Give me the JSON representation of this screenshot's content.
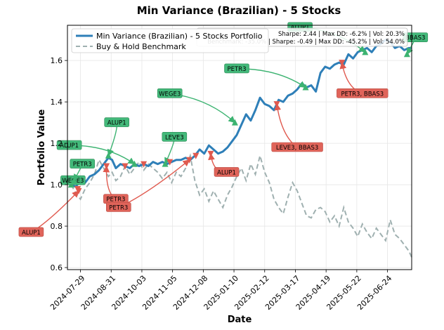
{
  "chart_data": {
    "type": "line",
    "title": "Min Variance (Brazilian) - 5 Stocks",
    "xlabel": "Date",
    "ylabel": "Portfolio Value",
    "xlim": [
      "2024-07-15",
      "2025-07-20"
    ],
    "ylim": [
      0.59,
      1.77
    ],
    "x_ticks": [
      "2024-07-29",
      "2024-08-31",
      "2024-10-03",
      "2024-11-05",
      "2024-12-08",
      "2025-01-10",
      "2025-02-12",
      "2025-03-17",
      "2025-04-19",
      "2025-05-22",
      "2025-06-24"
    ],
    "y_ticks": [
      0.6,
      0.8,
      1.0,
      1.2,
      1.4,
      1.6
    ],
    "y_tick_labels": [
      "0.6",
      "0.8",
      "1.0",
      "1.2",
      "1.4",
      "1.6"
    ],
    "grid": true,
    "legend_position": "top-left",
    "stats": [
      "Sharpe: 2.44 | Max DD: -6.2% | Vol: 20.3%",
      "Benchmark: -35.0% | Sharpe: -0.49 | Max DD: -45.2% | Vol: 54.0%"
    ],
    "series": [
      {
        "name": "Min Variance (Brazilian) - 5 Stocks Portfolio",
        "color": "#2e7fb8",
        "style": "solid",
        "points": [
          [
            "2024-07-19",
            1.0
          ],
          [
            "2024-07-24",
            0.99
          ],
          [
            "2024-07-29",
            1.02
          ],
          [
            "2024-08-03",
            1.01
          ],
          [
            "2024-08-08",
            1.04
          ],
          [
            "2024-08-13",
            1.05
          ],
          [
            "2024-08-18",
            1.07
          ],
          [
            "2024-08-23",
            1.1
          ],
          [
            "2024-08-28",
            1.13
          ],
          [
            "2024-09-01",
            1.12
          ],
          [
            "2024-09-05",
            1.08
          ],
          [
            "2024-09-10",
            1.1
          ],
          [
            "2024-09-15",
            1.09
          ],
          [
            "2024-09-20",
            1.08
          ],
          [
            "2024-09-25",
            1.1
          ],
          [
            "2024-09-30",
            1.09
          ],
          [
            "2024-10-05",
            1.1
          ],
          [
            "2024-10-10",
            1.09
          ],
          [
            "2024-10-15",
            1.11
          ],
          [
            "2024-10-20",
            1.1
          ],
          [
            "2024-10-25",
            1.11
          ],
          [
            "2024-10-30",
            1.1
          ],
          [
            "2024-11-04",
            1.11
          ],
          [
            "2024-11-09",
            1.12
          ],
          [
            "2024-11-14",
            1.12
          ],
          [
            "2024-11-19",
            1.13
          ],
          [
            "2024-11-24",
            1.12
          ],
          [
            "2024-11-29",
            1.14
          ],
          [
            "2024-12-04",
            1.17
          ],
          [
            "2024-12-09",
            1.15
          ],
          [
            "2024-12-14",
            1.19
          ],
          [
            "2024-12-19",
            1.17
          ],
          [
            "2024-12-24",
            1.15
          ],
          [
            "2024-12-29",
            1.16
          ],
          [
            "2025-01-03",
            1.18
          ],
          [
            "2025-01-08",
            1.21
          ],
          [
            "2025-01-13",
            1.24
          ],
          [
            "2025-01-18",
            1.29
          ],
          [
            "2025-01-23",
            1.34
          ],
          [
            "2025-01-28",
            1.31
          ],
          [
            "2025-02-02",
            1.36
          ],
          [
            "2025-02-07",
            1.42
          ],
          [
            "2025-02-12",
            1.39
          ],
          [
            "2025-02-17",
            1.38
          ],
          [
            "2025-02-22",
            1.36
          ],
          [
            "2025-02-27",
            1.41
          ],
          [
            "2025-03-04",
            1.4
          ],
          [
            "2025-03-09",
            1.43
          ],
          [
            "2025-03-14",
            1.44
          ],
          [
            "2025-03-19",
            1.46
          ],
          [
            "2025-03-24",
            1.49
          ],
          [
            "2025-03-29",
            1.47
          ],
          [
            "2025-04-03",
            1.48
          ],
          [
            "2025-04-08",
            1.45
          ],
          [
            "2025-04-13",
            1.54
          ],
          [
            "2025-04-18",
            1.57
          ],
          [
            "2025-04-23",
            1.56
          ],
          [
            "2025-04-28",
            1.58
          ],
          [
            "2025-05-03",
            1.59
          ],
          [
            "2025-05-08",
            1.58
          ],
          [
            "2025-05-13",
            1.63
          ],
          [
            "2025-05-18",
            1.61
          ],
          [
            "2025-05-23",
            1.64
          ],
          [
            "2025-05-28",
            1.65
          ],
          [
            "2025-06-02",
            1.66
          ],
          [
            "2025-06-07",
            1.64
          ],
          [
            "2025-06-12",
            1.67
          ],
          [
            "2025-06-17",
            1.68
          ],
          [
            "2025-06-22",
            1.7
          ],
          [
            "2025-06-27",
            1.69
          ],
          [
            "2025-07-02",
            1.66
          ],
          [
            "2025-07-07",
            1.67
          ],
          [
            "2025-07-12",
            1.65
          ],
          [
            "2025-07-17",
            1.66
          ],
          [
            "2025-07-20",
            1.66
          ]
        ]
      },
      {
        "name": "Buy & Hold Benchmark",
        "color": "#9fb0b0",
        "style": "dashed",
        "points": [
          [
            "2024-07-19",
            1.0
          ],
          [
            "2024-07-24",
            0.96
          ],
          [
            "2024-07-29",
            0.93
          ],
          [
            "2024-08-03",
            0.98
          ],
          [
            "2024-08-08",
            1.01
          ],
          [
            "2024-08-13",
            1.05
          ],
          [
            "2024-08-18",
            1.12
          ],
          [
            "2024-08-23",
            1.08
          ],
          [
            "2024-08-28",
            1.04
          ],
          [
            "2024-09-01",
            1.06
          ],
          [
            "2024-09-05",
            1.02
          ],
          [
            "2024-09-10",
            1.04
          ],
          [
            "2024-09-15",
            1.09
          ],
          [
            "2024-09-20",
            1.05
          ],
          [
            "2024-09-25",
            1.08
          ],
          [
            "2024-09-30",
            1.11
          ],
          [
            "2024-10-05",
            1.07
          ],
          [
            "2024-10-10",
            1.1
          ],
          [
            "2024-10-15",
            1.08
          ],
          [
            "2024-10-20",
            1.06
          ],
          [
            "2024-10-25",
            1.03
          ],
          [
            "2024-10-30",
            1.06
          ],
          [
            "2024-11-04",
            1.01
          ],
          [
            "2024-11-09",
            1.06
          ],
          [
            "2024-11-14",
            1.04
          ],
          [
            "2024-11-19",
            1.08
          ],
          [
            "2024-11-24",
            1.14
          ],
          [
            "2024-11-29",
            1.02
          ],
          [
            "2024-12-04",
            0.95
          ],
          [
            "2024-12-09",
            0.98
          ],
          [
            "2024-12-14",
            0.92
          ],
          [
            "2024-12-19",
            0.97
          ],
          [
            "2024-12-24",
            0.93
          ],
          [
            "2024-12-29",
            0.89
          ],
          [
            "2025-01-03",
            0.95
          ],
          [
            "2025-01-08",
            0.99
          ],
          [
            "2025-01-13",
            1.04
          ],
          [
            "2025-01-18",
            1.08
          ],
          [
            "2025-01-23",
            1.02
          ],
          [
            "2025-01-28",
            1.1
          ],
          [
            "2025-02-02",
            1.05
          ],
          [
            "2025-02-07",
            1.14
          ],
          [
            "2025-02-12",
            1.06
          ],
          [
            "2025-02-17",
            1.01
          ],
          [
            "2025-02-22",
            0.93
          ],
          [
            "2025-02-27",
            0.89
          ],
          [
            "2025-03-04",
            0.86
          ],
          [
            "2025-03-09",
            0.94
          ],
          [
            "2025-03-14",
            1.01
          ],
          [
            "2025-03-19",
            0.97
          ],
          [
            "2025-03-24",
            0.91
          ],
          [
            "2025-03-29",
            0.85
          ],
          [
            "2025-04-03",
            0.84
          ],
          [
            "2025-04-08",
            0.88
          ],
          [
            "2025-04-13",
            0.89
          ],
          [
            "2025-04-18",
            0.87
          ],
          [
            "2025-04-23",
            0.82
          ],
          [
            "2025-04-28",
            0.85
          ],
          [
            "2025-05-03",
            0.8
          ],
          [
            "2025-05-08",
            0.89
          ],
          [
            "2025-05-13",
            0.82
          ],
          [
            "2025-05-18",
            0.79
          ],
          [
            "2025-05-23",
            0.75
          ],
          [
            "2025-05-28",
            0.81
          ],
          [
            "2025-06-02",
            0.77
          ],
          [
            "2025-06-07",
            0.74
          ],
          [
            "2025-06-12",
            0.79
          ],
          [
            "2025-06-17",
            0.76
          ],
          [
            "2025-06-22",
            0.73
          ],
          [
            "2025-06-27",
            0.83
          ],
          [
            "2025-07-02",
            0.76
          ],
          [
            "2025-07-07",
            0.74
          ],
          [
            "2025-07-12",
            0.71
          ],
          [
            "2025-07-17",
            0.68
          ],
          [
            "2025-07-20",
            0.65
          ]
        ]
      }
    ],
    "annotations": [
      {
        "label": "WEGE3",
        "type": "buy",
        "x": "2024-07-19",
        "y": 1.0,
        "label_x": "2024-07-21",
        "label_y": 1.02
      },
      {
        "label": "PETR3",
        "type": "buy",
        "x": "2024-07-22",
        "y": 1.02,
        "label_x": "2024-07-31",
        "label_y": 1.1
      },
      {
        "label": "ALUP1",
        "type": "buy",
        "x": "2024-09-25",
        "y": 1.1,
        "label_x": "2024-07-17",
        "label_y": 1.19
      },
      {
        "label": "ALUP1",
        "type": "buy",
        "x": "2024-08-28",
        "y": 1.14,
        "label_x": "2024-09-06",
        "label_y": 1.3
      },
      {
        "label": "LEVE3",
        "type": "buy",
        "x": "2024-10-28",
        "y": 1.1,
        "label_x": "2024-11-07",
        "label_y": 1.23
      },
      {
        "label": "WEGE3",
        "type": "buy",
        "x": "2025-01-11",
        "y": 1.3,
        "label_x": "2024-11-02",
        "label_y": 1.44
      },
      {
        "label": "PETR3",
        "type": "buy",
        "x": "2025-03-28",
        "y": 1.47,
        "label_x": "2025-01-13",
        "label_y": 1.56
      },
      {
        "label": "ALUP1",
        "type": "buy",
        "x": "2025-05-31",
        "y": 1.64,
        "label_x": "2025-03-22",
        "label_y": 1.76
      },
      {
        "label": "BBAS3",
        "type": "buy",
        "x": "2025-07-15",
        "y": 1.63,
        "label_x": "2025-07-24",
        "label_y": 1.71
      },
      {
        "label": "ALUP1",
        "type": "sell",
        "x": "2024-07-27",
        "y": 0.97,
        "label_x": "2024-06-06",
        "label_y": 0.77
      },
      {
        "label": "PETR3",
        "type": "sell",
        "x": "2024-08-26",
        "y": 1.09,
        "label_x": "2024-09-05",
        "label_y": 0.93
      },
      {
        "label": "PETR3",
        "type": "sell",
        "x": "2024-11-23",
        "y": 1.12,
        "label_x": "2024-09-08",
        "label_y": 0.89
      },
      {
        "label": "ALUP1",
        "type": "sell",
        "x": "2024-12-16",
        "y": 1.15,
        "label_x": "2025-01-02",
        "label_y": 1.06
      },
      {
        "label": "LEVE3, BBAS3",
        "type": "sell",
        "x": "2025-02-25",
        "y": 1.39,
        "label_x": "2025-03-19",
        "label_y": 1.18
      },
      {
        "label": "PETR3, BBAS3",
        "type": "sell",
        "x": "2025-05-06",
        "y": 1.59,
        "label_x": "2025-05-28",
        "label_y": 1.44
      },
      {
        "label": "",
        "type": "sell",
        "x": "2024-07-26",
        "y": 0.98,
        "label_x": "",
        "label_y": null
      },
      {
        "label": "",
        "type": "sell",
        "x": "2024-09-15",
        "y": 1.09,
        "label_x": "",
        "label_y": null
      },
      {
        "label": "",
        "type": "sell",
        "x": "2024-10-05",
        "y": 1.1,
        "label_x": "",
        "label_y": null
      },
      {
        "label": "",
        "type": "sell",
        "x": "2024-11-02",
        "y": 1.11,
        "label_x": "",
        "label_y": null
      },
      {
        "label": "",
        "type": "sell",
        "x": "2024-11-30",
        "y": 1.14,
        "label_x": "",
        "label_y": null
      }
    ],
    "colors": {
      "buy": "#3cb371",
      "sell": "#e05a4f",
      "buy_box": "#43b97a",
      "sell_box": "#e0645a"
    }
  }
}
